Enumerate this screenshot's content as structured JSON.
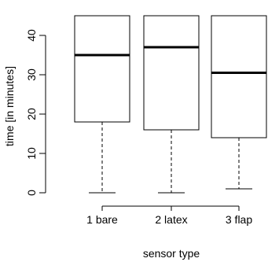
{
  "chart_data": {
    "type": "boxplot",
    "xlabel": "sensor type",
    "ylabel": "time [in minutes]",
    "ylim": [
      -2,
      47
    ],
    "yticks": [
      0,
      10,
      20,
      30,
      40
    ],
    "categories": [
      "1 bare",
      "2 latex",
      "3 flap"
    ],
    "boxes": [
      {
        "min": 0,
        "q1": 18,
        "median": 35,
        "q3": 45,
        "max": 45
      },
      {
        "min": 0,
        "q1": 16,
        "median": 37,
        "q3": 45,
        "max": 45
      },
      {
        "min": 1,
        "q1": 14,
        "median": 30.5,
        "q3": 45,
        "max": 45
      }
    ],
    "grid": false,
    "legend": "none"
  }
}
